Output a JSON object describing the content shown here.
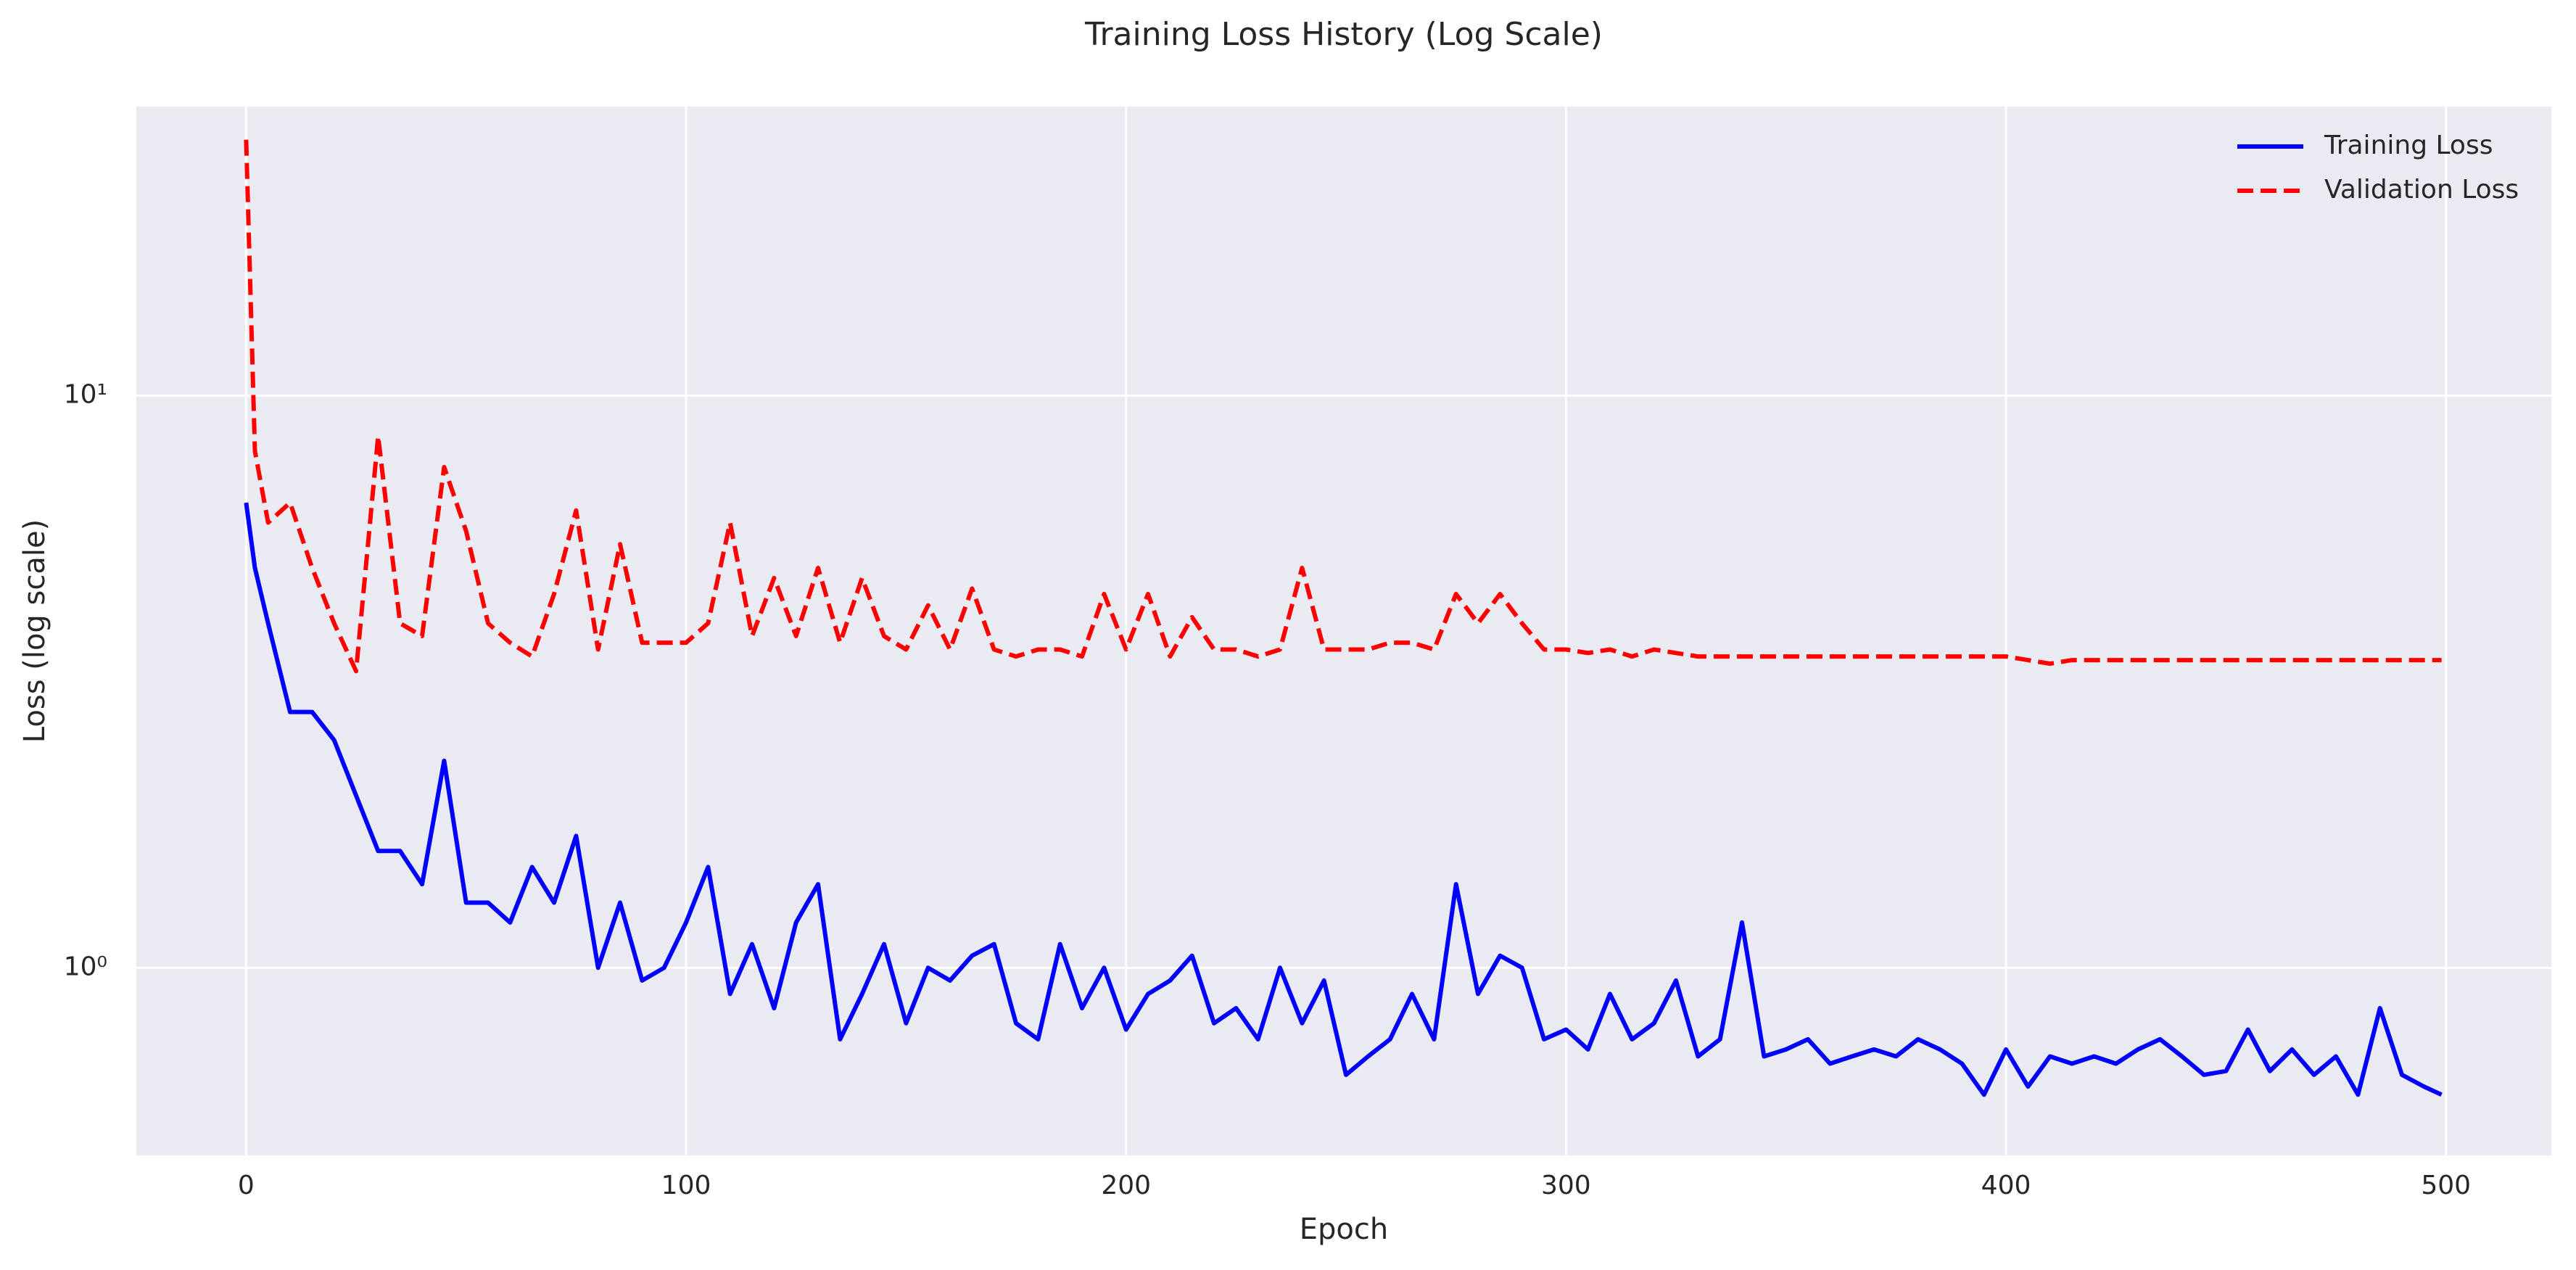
{
  "chart_data": {
    "type": "line",
    "title": "Training Loss History (Log Scale)",
    "xlabel": "Epoch",
    "ylabel": "Loss (log scale)",
    "x": [
      0,
      2,
      5,
      10,
      15,
      20,
      25,
      30,
      35,
      40,
      45,
      50,
      55,
      60,
      65,
      70,
      75,
      80,
      85,
      90,
      95,
      100,
      105,
      110,
      115,
      120,
      125,
      130,
      135,
      140,
      145,
      150,
      155,
      160,
      165,
      170,
      175,
      180,
      185,
      190,
      195,
      200,
      205,
      210,
      215,
      220,
      225,
      230,
      235,
      240,
      245,
      250,
      255,
      260,
      265,
      270,
      275,
      280,
      285,
      290,
      295,
      300,
      305,
      310,
      315,
      320,
      325,
      330,
      335,
      340,
      345,
      350,
      355,
      360,
      365,
      370,
      375,
      380,
      385,
      390,
      395,
      400,
      405,
      410,
      415,
      420,
      425,
      430,
      435,
      440,
      445,
      450,
      455,
      460,
      465,
      470,
      475,
      480,
      485,
      490,
      495,
      499
    ],
    "series": [
      {
        "name": "Training Loss",
        "color": "#0000ff",
        "dash": "solid",
        "values": [
          6.5,
          5.0,
          4.0,
          2.8,
          2.8,
          2.5,
          2.0,
          1.6,
          1.6,
          1.4,
          2.3,
          1.3,
          1.3,
          1.2,
          1.5,
          1.3,
          1.7,
          1.0,
          1.3,
          0.95,
          1.0,
          1.2,
          1.5,
          0.9,
          1.1,
          0.85,
          1.2,
          1.4,
          0.75,
          0.9,
          1.1,
          0.8,
          1.0,
          0.95,
          1.05,
          1.1,
          0.8,
          0.75,
          1.1,
          0.85,
          1.0,
          0.78,
          0.9,
          0.95,
          1.05,
          0.8,
          0.85,
          0.75,
          1.0,
          0.8,
          0.95,
          0.65,
          0.7,
          0.75,
          0.9,
          0.75,
          1.4,
          0.9,
          1.05,
          1.0,
          0.75,
          0.78,
          0.72,
          0.9,
          0.75,
          0.8,
          0.95,
          0.7,
          0.75,
          1.2,
          0.7,
          0.72,
          0.75,
          0.68,
          0.7,
          0.72,
          0.7,
          0.75,
          0.72,
          0.68,
          0.6,
          0.72,
          0.62,
          0.7,
          0.68,
          0.7,
          0.68,
          0.72,
          0.75,
          0.7,
          0.65,
          0.66,
          0.78,
          0.66,
          0.72,
          0.65,
          0.7,
          0.6,
          0.85,
          0.65,
          0.62,
          0.6
        ]
      },
      {
        "name": "Validation Loss",
        "color": "#ff0000",
        "dash": "dashed",
        "values": [
          28,
          8,
          6.0,
          6.5,
          5.0,
          4.0,
          3.3,
          8.5,
          4.0,
          3.8,
          7.5,
          5.8,
          4.0,
          3.7,
          3.5,
          4.5,
          6.3,
          3.6,
          5.5,
          3.7,
          3.7,
          3.7,
          4.0,
          6.0,
          3.8,
          4.8,
          3.8,
          5.0,
          3.7,
          4.8,
          3.8,
          3.6,
          4.3,
          3.6,
          4.6,
          3.6,
          3.5,
          3.6,
          3.6,
          3.5,
          4.5,
          3.6,
          4.5,
          3.5,
          4.1,
          3.6,
          3.6,
          3.5,
          3.6,
          5.0,
          3.6,
          3.6,
          3.6,
          3.7,
          3.7,
          3.6,
          4.5,
          4.0,
          4.5,
          4.0,
          3.6,
          3.6,
          3.55,
          3.6,
          3.5,
          3.6,
          3.55,
          3.5,
          3.5,
          3.5,
          3.5,
          3.5,
          3.5,
          3.5,
          3.5,
          3.5,
          3.5,
          3.5,
          3.5,
          3.5,
          3.5,
          3.5,
          3.45,
          3.4,
          3.45,
          3.45,
          3.45,
          3.45,
          3.45,
          3.45,
          3.45,
          3.45,
          3.45,
          3.45,
          3.45,
          3.45,
          3.45,
          3.45,
          3.45,
          3.45,
          3.45,
          3.45
        ]
      }
    ],
    "xlim": [
      -24.95,
      523.95
    ],
    "xticks": [
      0,
      100,
      200,
      300,
      400,
      500
    ],
    "ylim": [
      0.47,
      32
    ],
    "yscale": "log",
    "yticks": [
      {
        "value": 1,
        "label": "10⁰"
      },
      {
        "value": 10,
        "label": "10¹"
      }
    ],
    "grid": true,
    "legend": "upper right"
  }
}
